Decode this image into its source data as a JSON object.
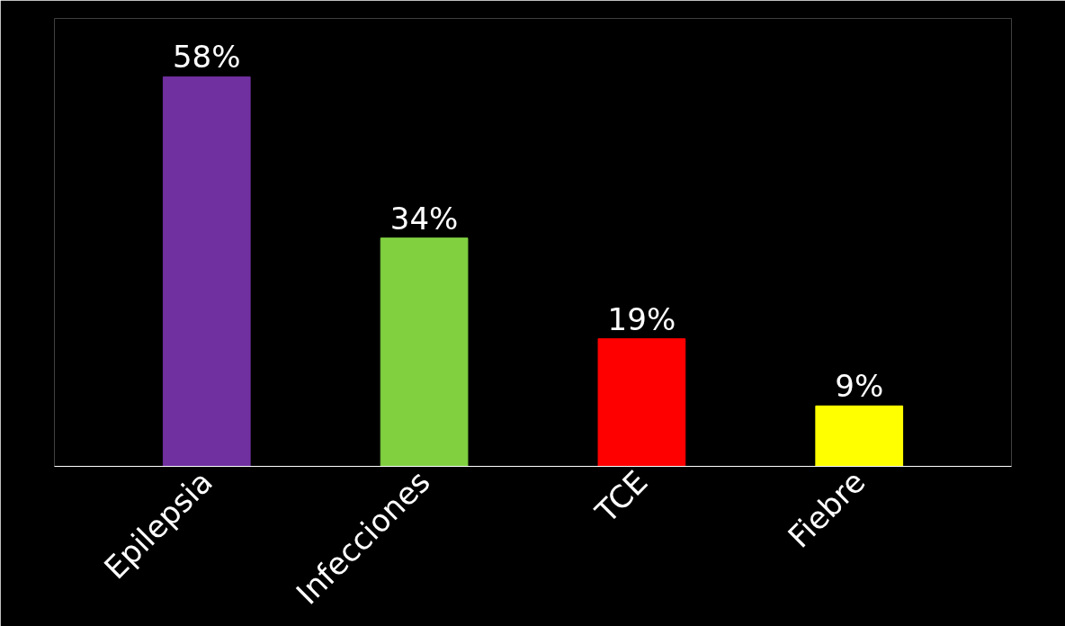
{
  "chart_data": {
    "type": "bar",
    "categories": [
      "Epilepsia",
      "Infecciones",
      "TCE",
      "Fiebre"
    ],
    "values": [
      58,
      34,
      19,
      9
    ],
    "colors": [
      "#7030a0",
      "#80d040",
      "#ff0000",
      "#ffff00"
    ],
    "value_labels": [
      "58%",
      "34%",
      "19%",
      "9%"
    ],
    "grid": false
  }
}
